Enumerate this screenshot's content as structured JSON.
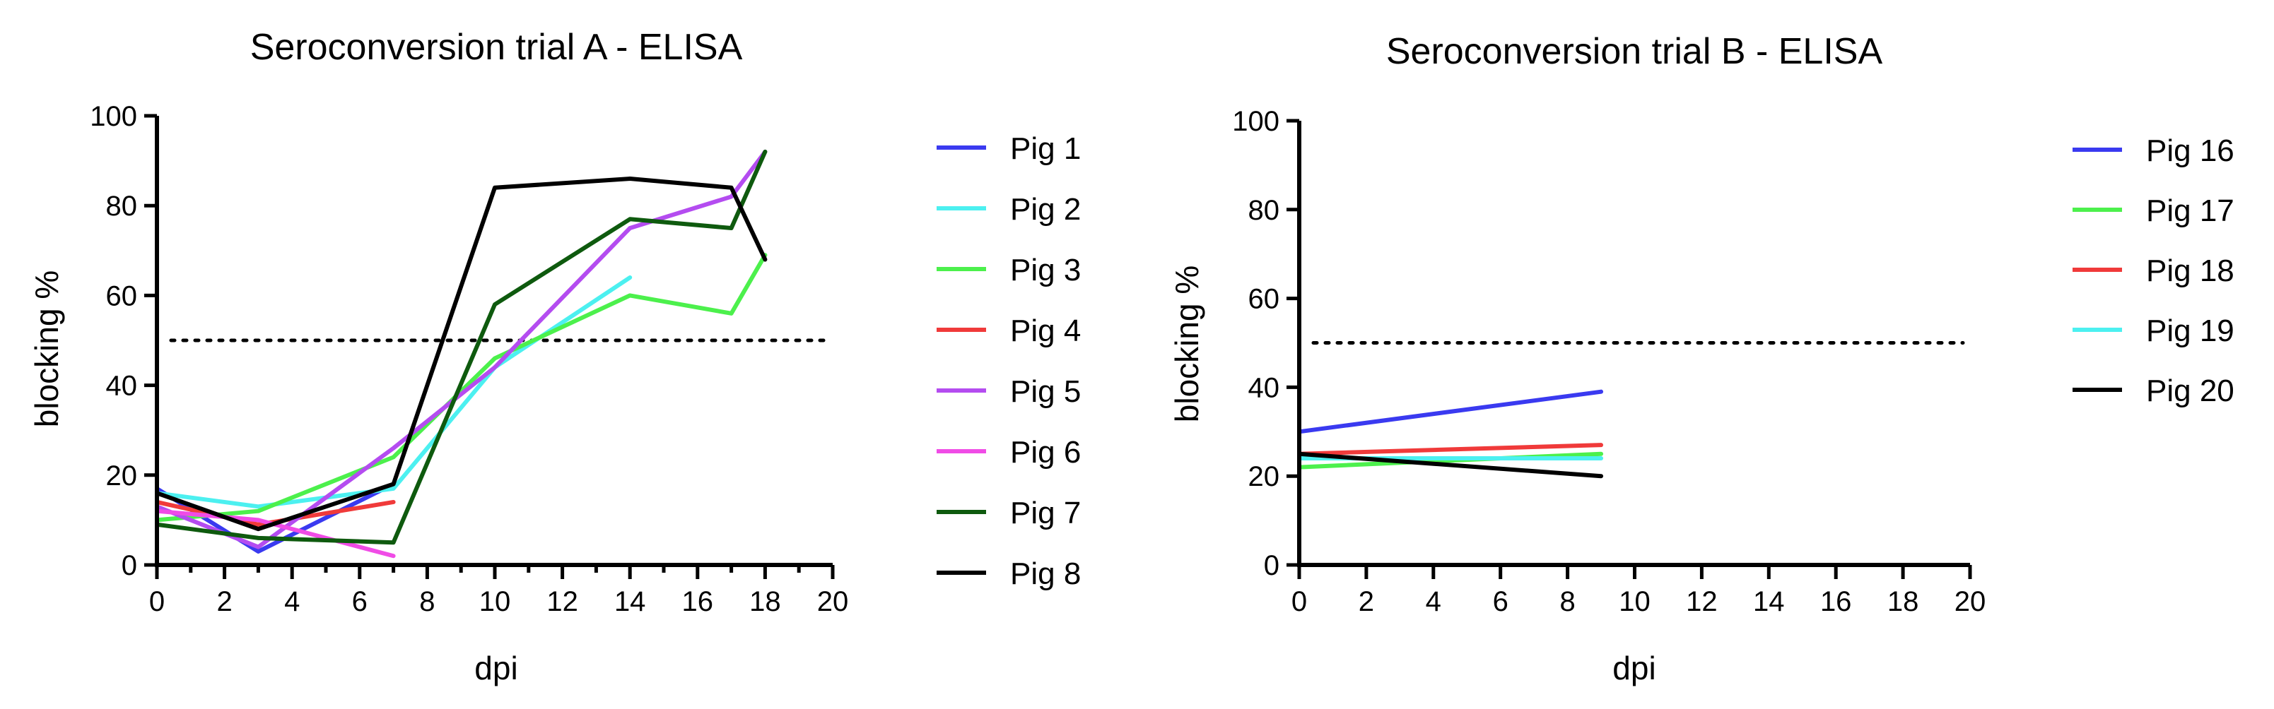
{
  "chart_data": [
    {
      "type": "line",
      "title": "Seroconversion trial A - ELISA",
      "xlabel": "dpi",
      "ylabel": "blocking %",
      "xlim": [
        0,
        20
      ],
      "ylim": [
        0,
        100
      ],
      "x_ticks": [
        0,
        2,
        4,
        6,
        8,
        10,
        12,
        14,
        16,
        18,
        20
      ],
      "x_minor_step": 1,
      "y_ticks": [
        0,
        20,
        40,
        60,
        80,
        100
      ],
      "threshold": 50,
      "legend_position": "right",
      "series": [
        {
          "name": "Pig 1",
          "color": "#3a3af0",
          "x": [
            0,
            3,
            7
          ],
          "y": [
            17,
            3,
            18
          ]
        },
        {
          "name": "Pig 2",
          "color": "#4cf0f0",
          "x": [
            0,
            3,
            7,
            10,
            14
          ],
          "y": [
            16,
            13,
            17,
            44,
            64
          ]
        },
        {
          "name": "Pig 3",
          "color": "#4cf04c",
          "x": [
            0,
            3,
            7,
            10,
            14,
            17,
            18
          ],
          "y": [
            10,
            12,
            24,
            46,
            60,
            56,
            69
          ]
        },
        {
          "name": "Pig 4",
          "color": "#f03a3a",
          "x": [
            0,
            3,
            7
          ],
          "y": [
            14,
            9,
            14
          ]
        },
        {
          "name": "Pig 5",
          "color": "#b44cf0",
          "x": [
            0,
            3,
            7,
            10,
            14,
            17,
            18
          ],
          "y": [
            13,
            4,
            26,
            44,
            75,
            82,
            92
          ]
        },
        {
          "name": "Pig 6",
          "color": "#f04ce6",
          "x": [
            0,
            3,
            7
          ],
          "y": [
            12,
            10,
            2
          ]
        },
        {
          "name": "Pig 7",
          "color": "#0e5a0e",
          "x": [
            0,
            3,
            7,
            10,
            14,
            17,
            18
          ],
          "y": [
            9,
            6,
            5,
            58,
            77,
            75,
            92
          ]
        },
        {
          "name": "Pig 8",
          "color": "#000000",
          "x": [
            0,
            3,
            7,
            10,
            14,
            17,
            18
          ],
          "y": [
            16,
            8,
            18,
            84,
            86,
            84,
            68
          ]
        }
      ]
    },
    {
      "type": "line",
      "title": "Seroconversion trial B - ELISA",
      "xlabel": "dpi",
      "ylabel": "blocking %",
      "xlim": [
        0,
        20
      ],
      "ylim": [
        0,
        100
      ],
      "x_ticks": [
        0,
        2,
        4,
        6,
        8,
        10,
        12,
        14,
        16,
        18,
        20
      ],
      "x_minor_step": 0,
      "y_ticks": [
        0,
        20,
        40,
        60,
        80,
        100
      ],
      "threshold": 50,
      "legend_position": "right",
      "series": [
        {
          "name": "Pig 16",
          "color": "#3a3af0",
          "x": [
            0,
            9
          ],
          "y": [
            30,
            39
          ]
        },
        {
          "name": "Pig 17",
          "color": "#4cf04c",
          "x": [
            0,
            9
          ],
          "y": [
            22,
            25
          ]
        },
        {
          "name": "Pig 18",
          "color": "#f03a3a",
          "x": [
            0,
            9
          ],
          "y": [
            25,
            27
          ]
        },
        {
          "name": "Pig 19",
          "color": "#4cf0f0",
          "x": [
            0,
            9
          ],
          "y": [
            24,
            24
          ]
        },
        {
          "name": "Pig 20",
          "color": "#000000",
          "x": [
            0,
            9
          ],
          "y": [
            25,
            20
          ]
        }
      ]
    }
  ]
}
